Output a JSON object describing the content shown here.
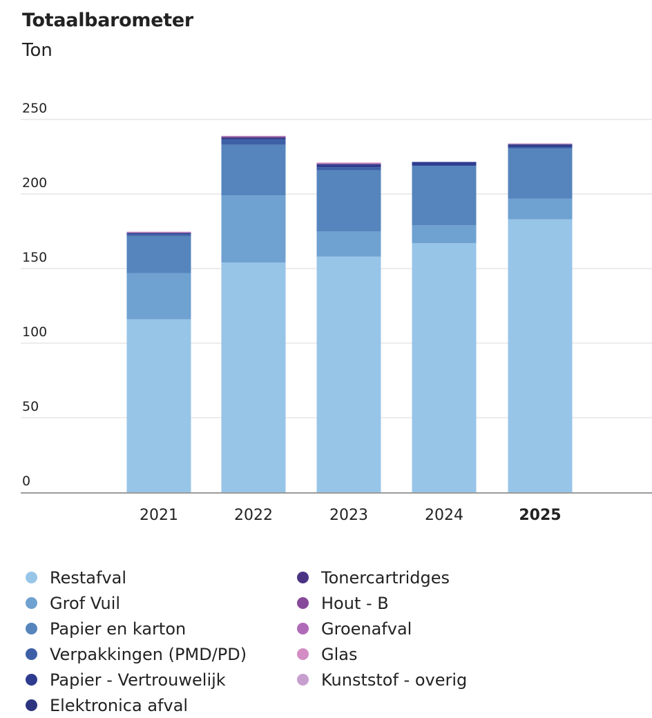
{
  "title": "Totaalbarometer",
  "subtitle": "Ton",
  "chart_data": {
    "type": "bar",
    "stacked": true,
    "categories": [
      "2021",
      "2022",
      "2023",
      "2024",
      "2025"
    ],
    "highlighted_category": "2025",
    "ylim": [
      0,
      250
    ],
    "yticks": [
      0,
      50,
      100,
      150,
      200,
      250
    ],
    "grid": true,
    "legend_position": "bottom",
    "series": [
      {
        "name": "Restafval",
        "color": "#97c5e8",
        "values": [
          116,
          154,
          158,
          167,
          183
        ]
      },
      {
        "name": "Grof Vuil",
        "color": "#6fa1d1",
        "values": [
          31,
          45,
          17,
          12,
          14
        ]
      },
      {
        "name": "Papier en karton",
        "color": "#5585bc",
        "values": [
          25,
          34,
          41,
          40,
          33.5
        ]
      },
      {
        "name": "Verpakkingen (PMD/PD)",
        "color": "#3d5fa6",
        "values": [
          1,
          3.5,
          2,
          0,
          1
        ]
      },
      {
        "name": "Papier - Vertrouwelijk",
        "color": "#2e3c8f",
        "values": [
          0.7,
          0.8,
          1.5,
          2.5,
          1.4
        ]
      },
      {
        "name": "Elektronica afval",
        "color": "#2d3580",
        "values": [
          0.3,
          0.5,
          0.5,
          0,
          0.3
        ]
      },
      {
        "name": "Tonercartridges",
        "color": "#4b3383",
        "values": [
          0,
          0.3,
          0,
          0,
          0.2
        ]
      },
      {
        "name": "Hout - B",
        "color": "#874a9a",
        "values": [
          0.2,
          0.5,
          0.5,
          0,
          0.2
        ]
      },
      {
        "name": "Groenafval",
        "color": "#b06bb8",
        "values": [
          0.1,
          0,
          0,
          0,
          0.1
        ]
      },
      {
        "name": "Glas",
        "color": "#d38dc4",
        "values": [
          0.4,
          0.4,
          0.6,
          0,
          0.2
        ]
      },
      {
        "name": "Kunststof - overig",
        "color": "#c79fce",
        "values": [
          0,
          0,
          0,
          0,
          0
        ]
      }
    ]
  }
}
